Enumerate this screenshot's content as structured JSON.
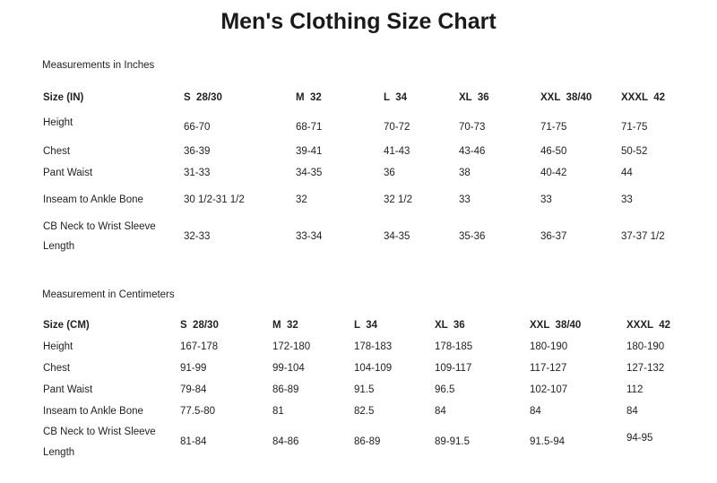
{
  "title": "Men's Clothing Size Chart",
  "tables": [
    {
      "subtitle": "Measurements in Inches",
      "header_label": "Size (IN)",
      "columns": [
        "S  28/30",
        "M  32",
        "L  34",
        "XL  36",
        "XXL  38/40",
        "XXXL  42"
      ],
      "rows": [
        {
          "label": "Height",
          "values": [
            "66-70",
            "68-71",
            "70-72",
            "70-73",
            "71-75",
            "71-75"
          ]
        },
        {
          "label": "Chest",
          "values": [
            "36-39",
            "39-41",
            "41-43",
            "43-46",
            "46-50",
            "50-52"
          ]
        },
        {
          "label": "Pant Waist",
          "values": [
            "31-33",
            "34-35",
            "36",
            "38",
            "40-42",
            "44"
          ]
        },
        {
          "label": "Inseam to Ankle Bone",
          "values": [
            "30 1/2-31 1/2",
            "32",
            "32 1/2",
            "33",
            "33",
            "33"
          ]
        },
        {
          "label": "CB Neck to Wrist Sleeve",
          "label2": "Length",
          "values": [
            "32-33",
            "33-34",
            "34-35",
            "35-36",
            "36-37",
            "37-37 1/2"
          ]
        }
      ]
    },
    {
      "subtitle": "Measurement in Centimeters",
      "header_label": "Size (CM)",
      "columns": [
        "S  28/30",
        "M  32",
        "L  34",
        "XL  36",
        "XXL  38/40",
        "XXXL  42"
      ],
      "rows": [
        {
          "label": "Height",
          "values": [
            "167-178",
            "172-180",
            "178-183",
            "178-185",
            "180-190",
            "180-190"
          ]
        },
        {
          "label": "Chest",
          "values": [
            "91-99",
            "99-104",
            "104-109",
            "109-117",
            "117-127",
            "127-132"
          ]
        },
        {
          "label": "Pant Waist",
          "values": [
            "79-84",
            "86-89",
            "91.5",
            "96.5",
            "102-107",
            "112"
          ]
        },
        {
          "label": "Inseam to Ankle Bone",
          "values": [
            "77.5-80",
            "81",
            "82.5",
            "84",
            "84",
            "84"
          ]
        },
        {
          "label": "CB Neck to Wrist Sleeve",
          "label2": "Length",
          "values": [
            "81-84",
            "84-86",
            "86-89",
            "89-91.5",
            "91.5-94",
            "94-95"
          ]
        }
      ]
    }
  ]
}
